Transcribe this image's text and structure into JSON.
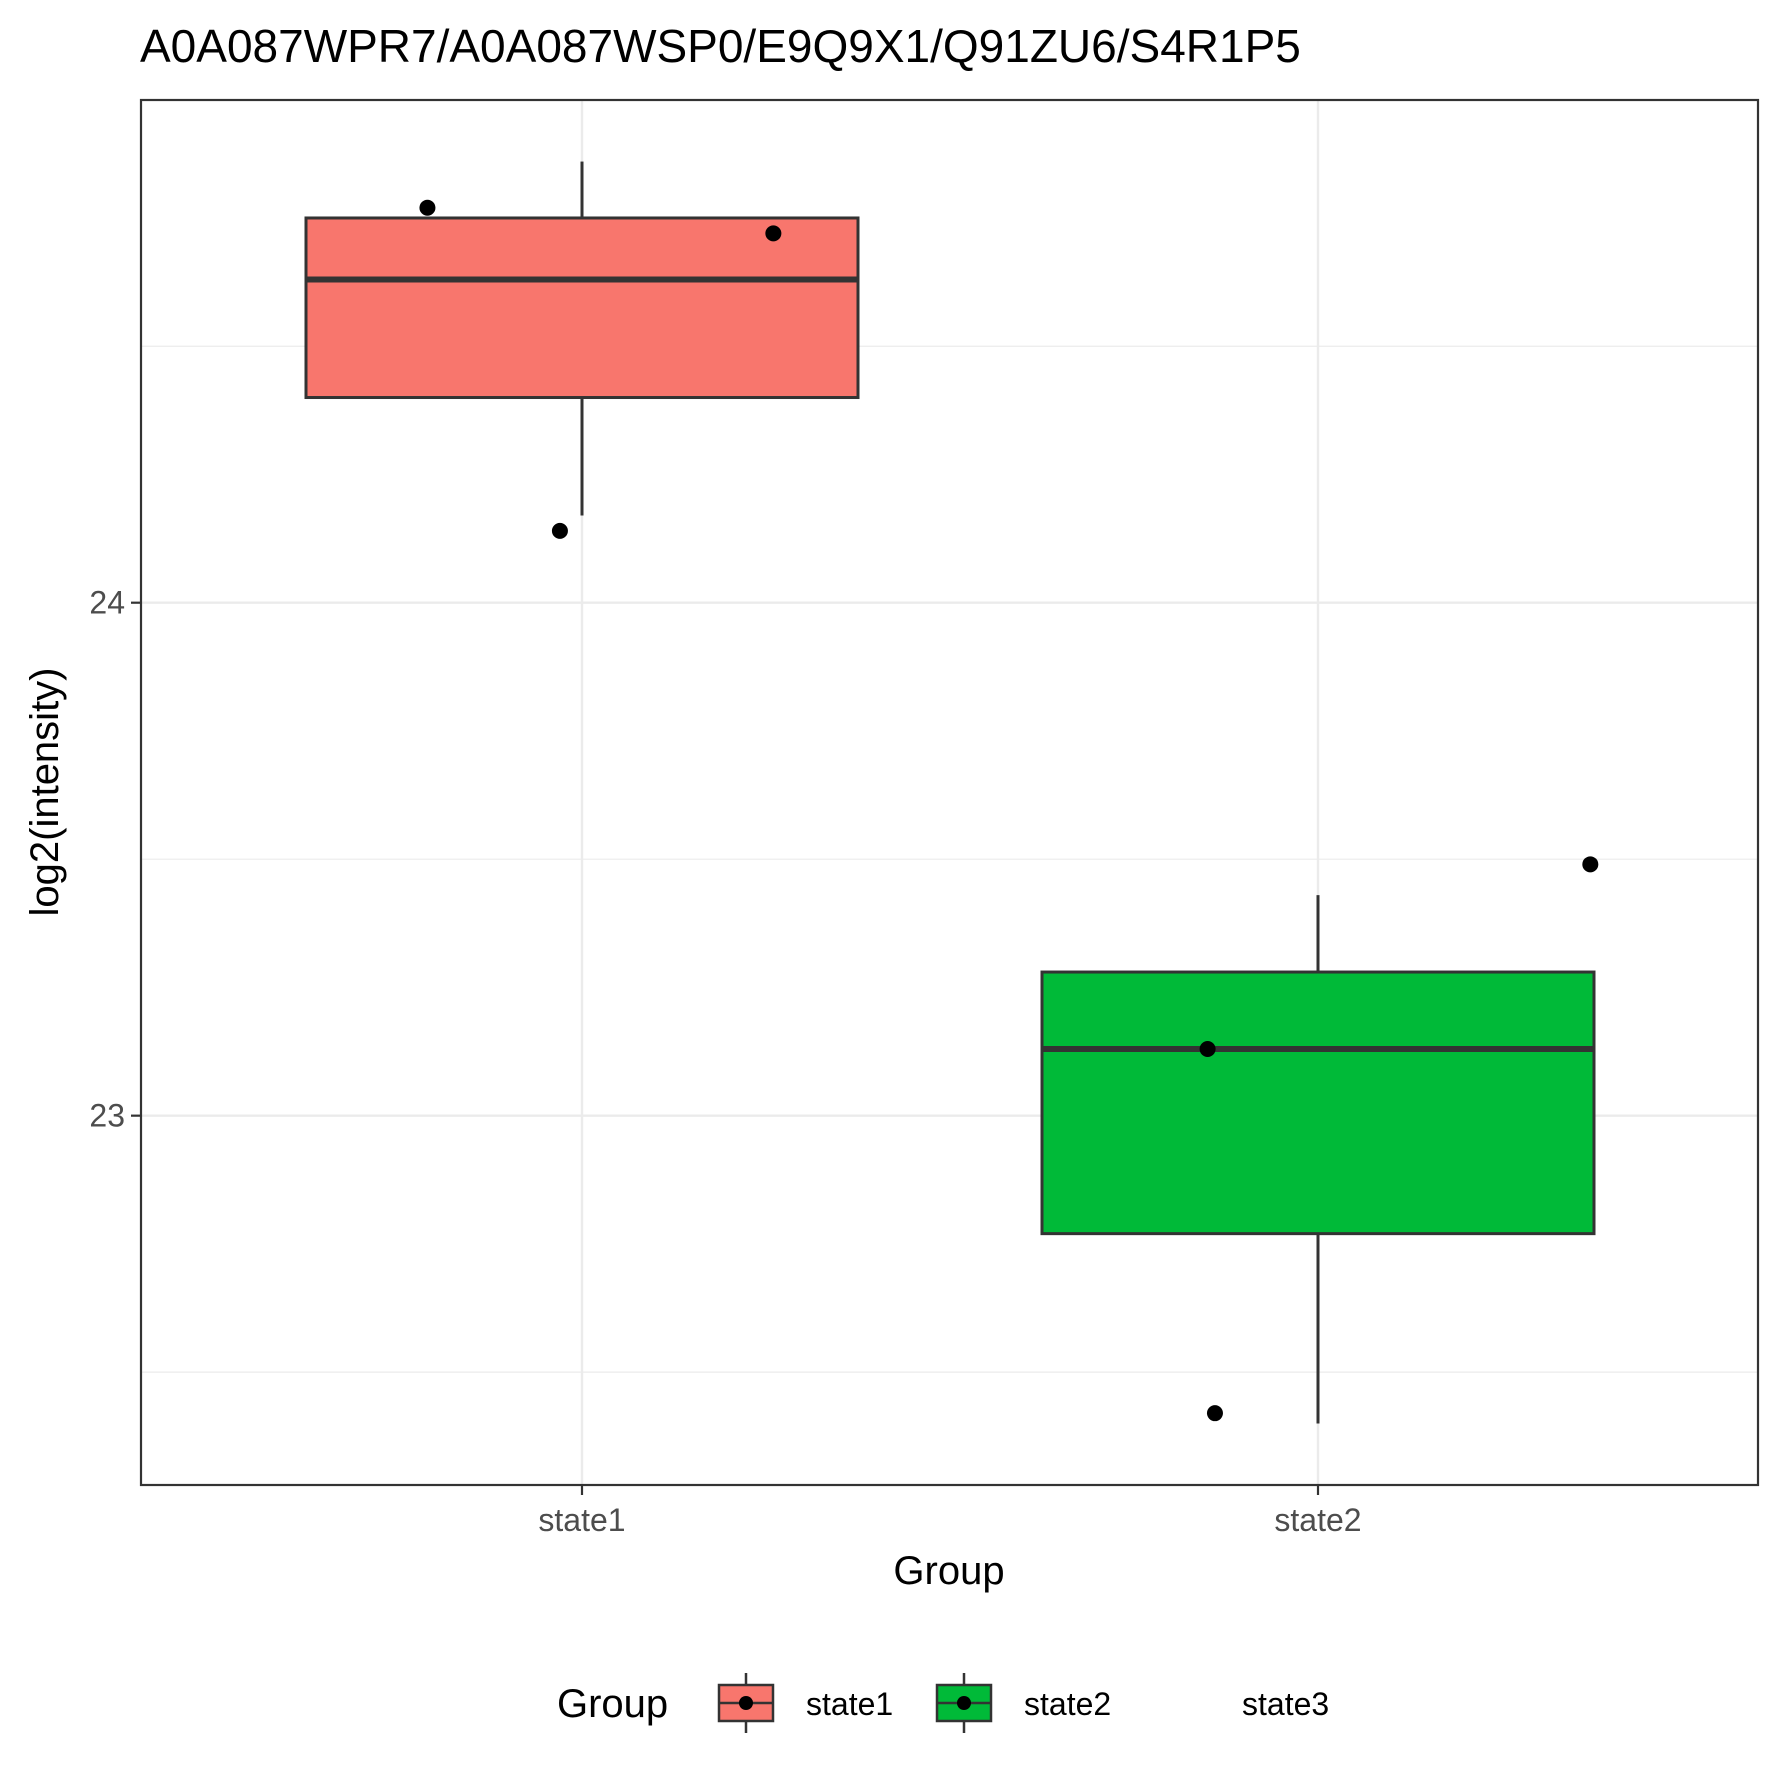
{
  "chart_data": {
    "type": "box",
    "title": "A0A087WPR7/A0A087WSP0/E9Q9X1/Q91ZU6/S4R1P5",
    "xlabel": "Group",
    "ylabel": "log2(intensity)",
    "categories": [
      "state1",
      "state2"
    ],
    "ylim": [
      22.28,
      24.98
    ],
    "yticks": [
      23,
      24
    ],
    "grid": true,
    "boxes": [
      {
        "group": "state1",
        "whisker_low": 24.17,
        "q1": 24.4,
        "median": 24.63,
        "q3": 24.75,
        "whisker_high": 24.86,
        "fill": "#F8766D"
      },
      {
        "group": "state2",
        "whisker_low": 22.4,
        "q1": 22.77,
        "median": 23.13,
        "q3": 23.28,
        "whisker_high": 23.43,
        "fill": "#00BA38"
      }
    ],
    "points": [
      {
        "group": "state1",
        "jitter": -0.21,
        "y": 24.77
      },
      {
        "group": "state1",
        "jitter": 0.26,
        "y": 24.72
      },
      {
        "group": "state1",
        "jitter": -0.03,
        "y": 24.14
      },
      {
        "group": "state2",
        "jitter": -0.15,
        "y": 23.13
      },
      {
        "group": "state2",
        "jitter": -0.14,
        "y": 22.42
      },
      {
        "group": "state2",
        "jitter": 0.37,
        "y": 23.49
      }
    ],
    "legend": {
      "title": "Group",
      "position": "bottom",
      "entries": [
        {
          "label": "state1",
          "color": "#F8766D"
        },
        {
          "label": "state2",
          "color": "#00BA38"
        },
        {
          "label": "state3",
          "color": ""
        }
      ]
    },
    "colors": {
      "panel_border": "#333333",
      "grid": "#ebebeb",
      "box_line": "#333333",
      "point": "#000000"
    }
  }
}
